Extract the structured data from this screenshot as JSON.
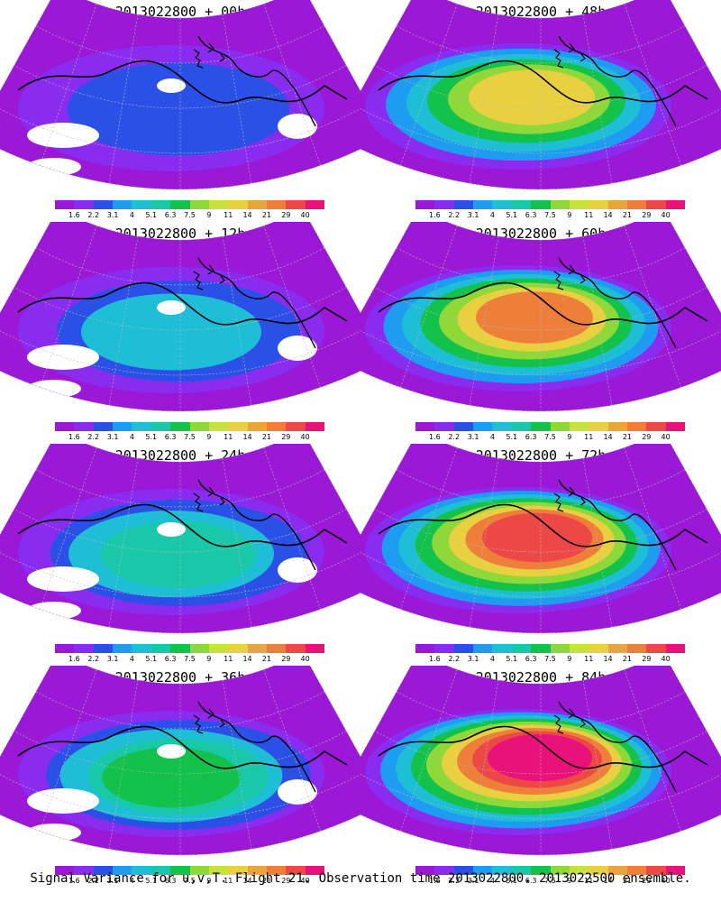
{
  "colorbar": {
    "labels": [
      "1.6",
      "2.2",
      "3.1",
      "4",
      "5.1",
      "6.3",
      "7.5",
      "9",
      "11",
      "14",
      "21",
      "29",
      "40"
    ],
    "colors": [
      "#9b18d6",
      "#8a2cf0",
      "#2b50e8",
      "#1e9cf2",
      "#1ebfd6",
      "#19c8a8",
      "#12c24a",
      "#8fd83a",
      "#c8e23c",
      "#e8d040",
      "#eaa43c",
      "#ee7f3a",
      "#ee4846",
      "#e8127a"
    ]
  },
  "panels": [
    {
      "title": "2013022800 + 00h",
      "level": 0
    },
    {
      "title": "2013022800 + 48h",
      "level": 4
    },
    {
      "title": "2013022800 + 12h",
      "level": 1
    },
    {
      "title": "2013022800 + 60h",
      "level": 5
    },
    {
      "title": "2013022800 + 24h",
      "level": 2
    },
    {
      "title": "2013022800 + 72h",
      "level": 6
    },
    {
      "title": "2013022800 + 36h",
      "level": 3
    },
    {
      "title": "2013022800 + 84h",
      "level": 7
    }
  ],
  "caption": "Signal Variance for u,v,T. Flight 21. Observation time 2013022800. 2013022500 ensemble."
}
